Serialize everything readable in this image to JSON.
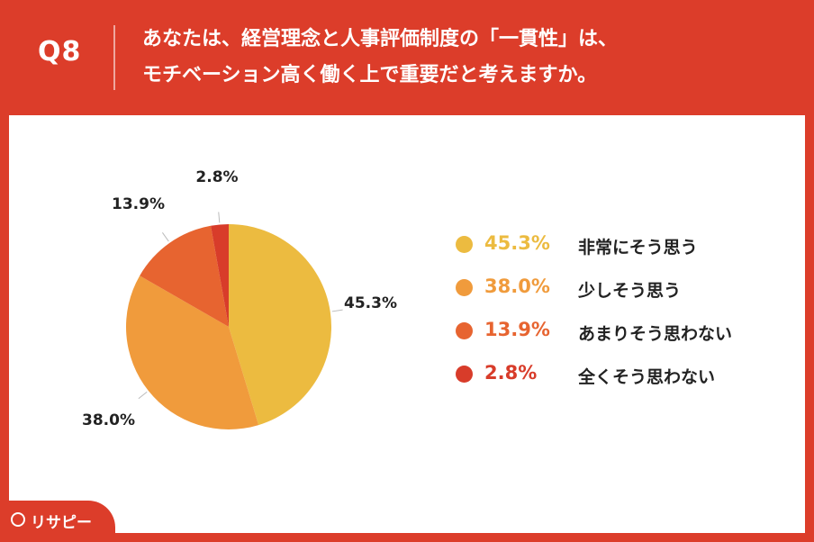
{
  "header": {
    "question_number": "Q8",
    "question_line1": "あなたは、経営理念と人事評価制度の「一貫性」は、",
    "question_line2": "モチベーション高く働く上で重要だと考えますか。"
  },
  "chart_data": {
    "type": "pie",
    "title": "",
    "slices": [
      {
        "label": "非常にそう思う",
        "value": 45.3,
        "display": "45.3%",
        "color": "#ecbb40"
      },
      {
        "label": "少しそう思う",
        "value": 38.0,
        "display": "38.0%",
        "color": "#f09b3c"
      },
      {
        "label": "あまりそう思わない",
        "value": 13.9,
        "display": "13.9%",
        "color": "#e76430"
      },
      {
        "label": "全くそう思わない",
        "value": 2.8,
        "display": "2.8%",
        "color": "#d83c2a"
      }
    ],
    "start": "12 o'clock",
    "direction": "clockwise",
    "legend_position": "right"
  },
  "footer": {
    "logo_text": "リサピー"
  }
}
